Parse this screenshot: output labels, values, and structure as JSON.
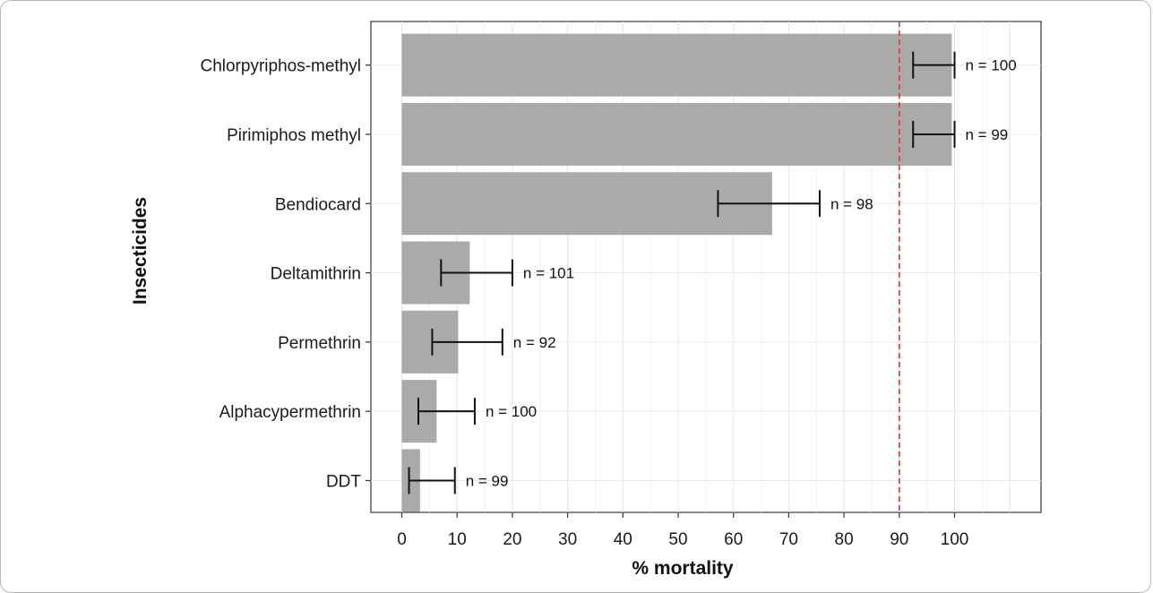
{
  "chart_data": {
    "type": "bar",
    "orientation": "horizontal",
    "xlabel": "% mortality",
    "ylabel": "Insecticides",
    "xlim": [
      -5,
      116
    ],
    "xticks": [
      0,
      10,
      20,
      30,
      40,
      50,
      60,
      70,
      80,
      90,
      100
    ],
    "grid": true,
    "reference_line": {
      "x": 90,
      "color": "#e8303a",
      "style": "dashed"
    },
    "bar_color": "#aaaaaa",
    "categories": [
      "Chlorpyriphos-methyl",
      "Pirimiphos methyl",
      "Bendiocard",
      "Deltamithrin",
      "Permethrin",
      "Alphacypermethrin",
      "DDT"
    ],
    "values": [
      99.5,
      99.5,
      67,
      12.3,
      10.2,
      6.3,
      3.3
    ],
    "ci_low": [
      92.5,
      92.5,
      57.2,
      7.1,
      5.5,
      3,
      1.3
    ],
    "ci_high": [
      100,
      100,
      75.6,
      20,
      18.2,
      13.2,
      9.6
    ],
    "n_labels": [
      "n = 100",
      "n = 99",
      "n = 98",
      "n = 101",
      "n = 92",
      "n = 100",
      "n = 99"
    ]
  }
}
